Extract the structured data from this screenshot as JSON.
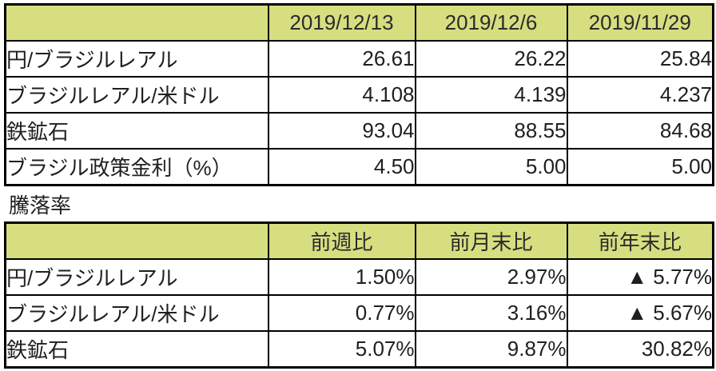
{
  "colors": {
    "header_bg": "#d7de80",
    "border": "#000000",
    "text": "#1f1f1f"
  },
  "table1": {
    "header": [
      "",
      "2019/12/13",
      "2019/12/6",
      "2019/11/29"
    ],
    "rows": [
      {
        "label": "円/ブラジルレアル",
        "values": [
          "26.61",
          "26.22",
          "25.84"
        ]
      },
      {
        "label": "ブラジルレアル/米ドル",
        "values": [
          "4.108",
          "4.139",
          "4.237"
        ]
      },
      {
        "label": "鉄鉱石",
        "values": [
          "93.04",
          "88.55",
          "84.68"
        ]
      },
      {
        "label": "ブラジル政策金利（%）",
        "values": [
          "4.50",
          "5.00",
          "5.00"
        ]
      }
    ]
  },
  "section_label": "騰落率",
  "table2": {
    "header": [
      "",
      "前週比",
      "前月末比",
      "前年末比"
    ],
    "rows": [
      {
        "label": "円/ブラジルレアル",
        "values": [
          "1.50%",
          "2.97%",
          "▲ 5.77%"
        ]
      },
      {
        "label": "ブラジルレアル/米ドル",
        "values": [
          "0.77%",
          "3.16%",
          "▲ 5.67%"
        ]
      },
      {
        "label": "鉄鉱石",
        "values": [
          "5.07%",
          "9.87%",
          "30.82%"
        ]
      }
    ]
  }
}
